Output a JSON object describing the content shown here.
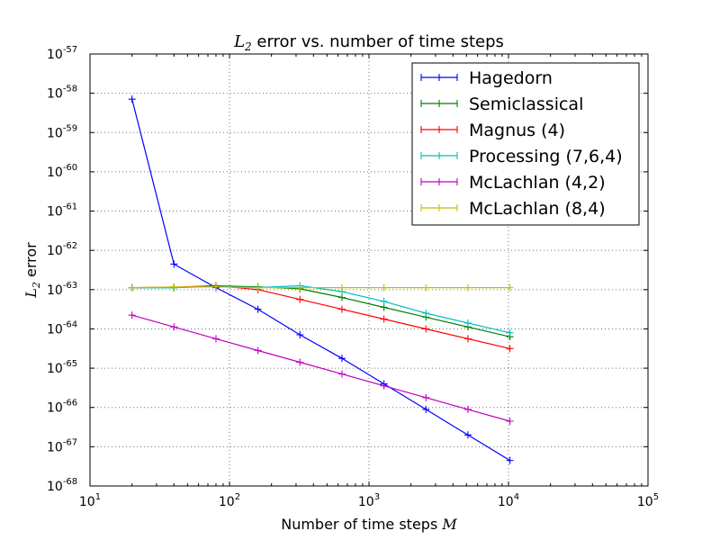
{
  "chart_data": {
    "type": "line",
    "title": {
      "prefix": "L",
      "sub": "2",
      "suffix": " error vs. number of time steps"
    },
    "xlabel": {
      "text": "Number of time steps ",
      "var": "M"
    },
    "ylabel": {
      "prefix": "L",
      "sub": "2",
      "suffix": " error"
    },
    "x_scale": "log",
    "y_scale": "log",
    "xlim": [
      10,
      100000
    ],
    "ylim": [
      1e-68,
      1e-57
    ],
    "x_ticks": [
      {
        "base": "10",
        "exp": "1",
        "value": 10
      },
      {
        "base": "10",
        "exp": "2",
        "value": 100
      },
      {
        "base": "10",
        "exp": "3",
        "value": 1000
      },
      {
        "base": "10",
        "exp": "4",
        "value": 10000
      },
      {
        "base": "10",
        "exp": "5",
        "value": 100000
      }
    ],
    "y_ticks": [
      {
        "base": "10",
        "exp": "-57",
        "value": -57
      },
      {
        "base": "10",
        "exp": "-58",
        "value": -58
      },
      {
        "base": "10",
        "exp": "-59",
        "value": -59
      },
      {
        "base": "10",
        "exp": "-60",
        "value": -60
      },
      {
        "base": "10",
        "exp": "-61",
        "value": -61
      },
      {
        "base": "10",
        "exp": "-62",
        "value": -62
      },
      {
        "base": "10",
        "exp": "-63",
        "value": -63
      },
      {
        "base": "10",
        "exp": "-64",
        "value": -64
      },
      {
        "base": "10",
        "exp": "-65",
        "value": -65
      },
      {
        "base": "10",
        "exp": "-66",
        "value": -66
      },
      {
        "base": "10",
        "exp": "-67",
        "value": -67
      },
      {
        "base": "10",
        "exp": "-68",
        "value": -68
      }
    ],
    "grid": true,
    "legend_position": "top-right",
    "x": [
      20,
      40,
      80,
      160,
      320,
      640,
      1280,
      2560,
      5120,
      10240
    ],
    "series": [
      {
        "name": "Hagedorn",
        "color": "#0000ff",
        "log10_values": [
          -58.15,
          -62.35,
          -62.95,
          -63.5,
          -64.15,
          -64.75,
          -65.4,
          -66.05,
          -66.7,
          -67.35
        ]
      },
      {
        "name": "Semiclassical",
        "color": "#008000",
        "log10_values": [
          -62.95,
          -62.95,
          -62.9,
          -62.93,
          -62.98,
          -63.2,
          -63.45,
          -63.7,
          -63.95,
          -64.2
        ]
      },
      {
        "name": "Magnus (4)",
        "color": "#ff0000",
        "log10_values": [
          -62.95,
          -62.94,
          -62.9,
          -63.0,
          -63.25,
          -63.5,
          -63.75,
          -64.0,
          -64.25,
          -64.5
        ]
      },
      {
        "name": "Processing (7,6,4)",
        "color": "#00bfbf",
        "log10_values": [
          -62.95,
          -62.95,
          -62.92,
          -62.95,
          -62.9,
          -63.05,
          -63.3,
          -63.6,
          -63.85,
          -64.1
        ]
      },
      {
        "name": "McLachlan (4,2)",
        "color": "#bf00bf",
        "log10_values": [
          -63.65,
          -63.95,
          -64.25,
          -64.55,
          -64.85,
          -65.15,
          -65.45,
          -65.75,
          -66.05,
          -66.35
        ]
      },
      {
        "name": "McLachlan (8,4)",
        "color": "#bfbf00",
        "log10_values": [
          -62.95,
          -62.93,
          -62.93,
          -62.95,
          -62.95,
          -62.95,
          -62.95,
          -62.95,
          -62.95,
          -62.95
        ]
      }
    ]
  }
}
